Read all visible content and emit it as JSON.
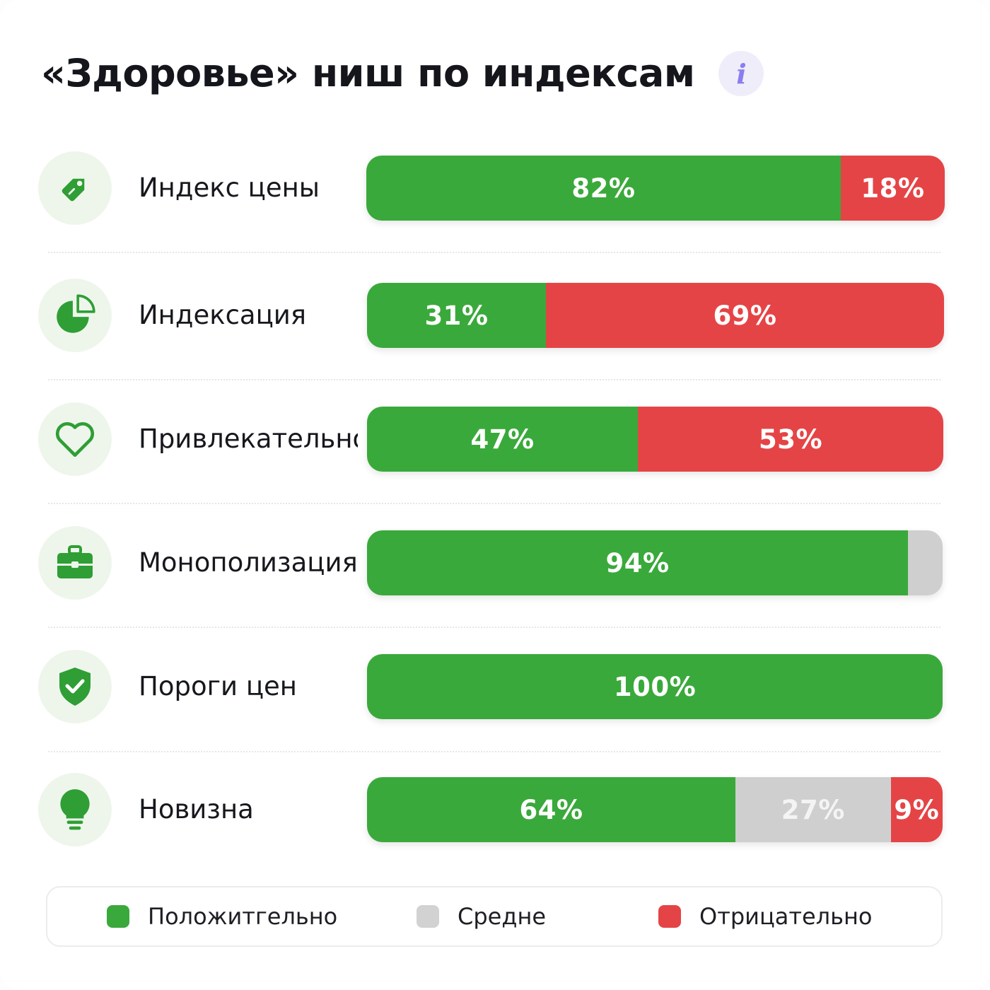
{
  "title": "«Здоровье» ниш по индексам",
  "info_icon": "i",
  "colors": {
    "positive": "#3aa93b",
    "neutral": "#cfcfcf",
    "negative": "#e54446",
    "icon": "#2f9e35"
  },
  "chart_data": {
    "type": "bar",
    "orientation": "horizontal",
    "stacked": true,
    "normalized": true,
    "title": "«Здоровье» ниш по индексам",
    "legend_position": "bottom",
    "categories": [
      "Индекс цены",
      "Индексация",
      "Привлекательно...",
      "Монополизация",
      "Пороги цен",
      "Новизна"
    ],
    "series": [
      {
        "name": "Положитгельно",
        "color": "#3aa93b",
        "values": [
          82,
          31,
          47,
          94,
          100,
          64
        ]
      },
      {
        "name": "Средне",
        "color": "#cfcfcf",
        "values": [
          0,
          0,
          0,
          6,
          0,
          27
        ]
      },
      {
        "name": "Отрицательно",
        "color": "#e54446",
        "values": [
          18,
          69,
          53,
          0,
          0,
          9
        ]
      }
    ]
  },
  "rows": [
    {
      "icon": "price-tag-icon",
      "label": "Индекс цены",
      "segments": [
        {
          "kind": "positive",
          "value": 82,
          "label": "82%"
        },
        {
          "kind": "negative",
          "value": 18,
          "label": "18%"
        }
      ]
    },
    {
      "icon": "pie-chart-icon",
      "label": "Индексация",
      "segments": [
        {
          "kind": "positive",
          "value": 31,
          "label": "31%"
        },
        {
          "kind": "negative",
          "value": 69,
          "label": "69%"
        }
      ]
    },
    {
      "icon": "heart-icon",
      "label": "Привлекательно...",
      "segments": [
        {
          "kind": "positive",
          "value": 47,
          "label": "47%"
        },
        {
          "kind": "negative",
          "value": 53,
          "label": "53%"
        }
      ]
    },
    {
      "icon": "briefcase-icon",
      "label": "Монополизация",
      "segments": [
        {
          "kind": "positive",
          "value": 94,
          "label": "94%"
        },
        {
          "kind": "neutral",
          "value": 6,
          "label": ""
        }
      ]
    },
    {
      "icon": "shield-check-icon",
      "label": "Пороги цен",
      "segments": [
        {
          "kind": "positive",
          "value": 100,
          "label": "100%"
        }
      ]
    },
    {
      "icon": "lightbulb-icon",
      "label": "Новизна",
      "segments": [
        {
          "kind": "positive",
          "value": 64,
          "label": "64%"
        },
        {
          "kind": "neutral",
          "value": 27,
          "label": "27%"
        },
        {
          "kind": "negative",
          "value": 9,
          "label": "9%"
        }
      ]
    }
  ],
  "legend": [
    {
      "kind": "positive",
      "label": "Положитгельно"
    },
    {
      "kind": "neutral",
      "label": "Средне"
    },
    {
      "kind": "negative",
      "label": "Отрицательно"
    }
  ]
}
